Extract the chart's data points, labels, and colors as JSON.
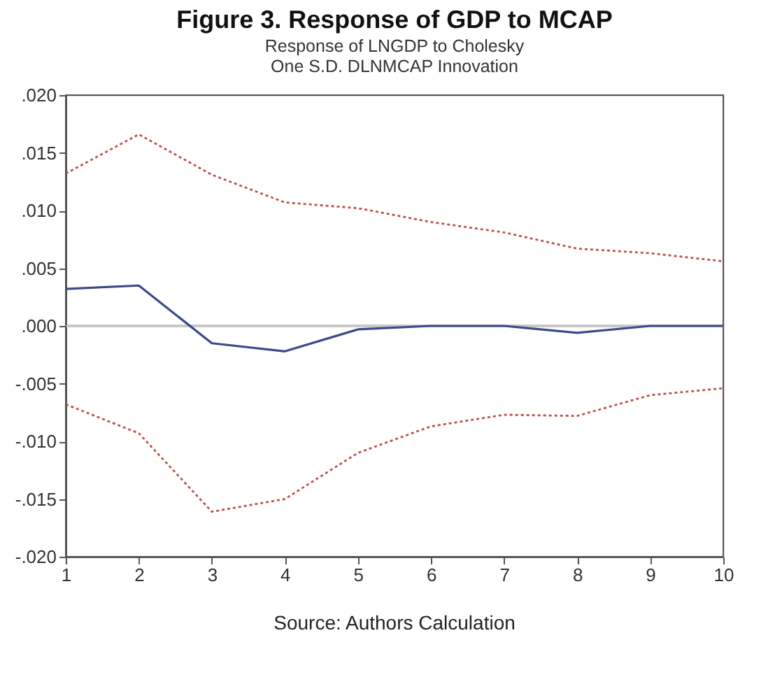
{
  "chart_data": {
    "type": "line",
    "title": "Figure 3. Response of GDP to MCAP",
    "subtitle": "Response of LNGDP to Cholesky\nOne S.D. DLNMCAP Innovation",
    "x": [
      1,
      2,
      3,
      4,
      5,
      6,
      7,
      8,
      9,
      10
    ],
    "series": [
      {
        "color": "#3b4a8a",
        "line_style": "solid",
        "values": [
          0.0032,
          0.0035,
          -0.0015,
          -0.0022,
          -0.0003,
          0.0,
          0.0,
          -0.0006,
          0.0,
          0.0
        ]
      },
      {
        "color": "#c0504d",
        "line_style": "dotted",
        "values": [
          0.0132,
          0.0166,
          0.0131,
          0.0107,
          0.0102,
          0.009,
          0.0081,
          0.0067,
          0.0063,
          0.0056
        ]
      },
      {
        "color": "#c0504d",
        "line_style": "dotted",
        "values": [
          -0.0068,
          -0.0093,
          -0.0161,
          -0.015,
          -0.011,
          -0.0087,
          -0.0077,
          -0.0078,
          -0.006,
          -0.0054
        ]
      }
    ],
    "xlim": [
      1,
      10
    ],
    "xticks": [
      1,
      2,
      3,
      4,
      5,
      6,
      7,
      8,
      9,
      10
    ],
    "ylim": [
      -0.02,
      0.02
    ],
    "yticks": [
      {
        "value": -0.02,
        "label": "-.020"
      },
      {
        "value": -0.015,
        "label": "-.015"
      },
      {
        "value": -0.01,
        "label": "-.010"
      },
      {
        "value": -0.005,
        "label": "-.005"
      },
      {
        "value": 0,
        "label": ".000"
      },
      {
        "value": 0.005,
        "label": ".005"
      },
      {
        "value": 0.01,
        "label": ".010"
      },
      {
        "value": 0.015,
        "label": ".015"
      },
      {
        "value": 0.02,
        "label": ".020"
      }
    ],
    "ref_lines": [
      {
        "axis": "y",
        "value": 0,
        "color": "#c8c8c8"
      }
    ],
    "grid": false,
    "marker": "none",
    "annotations": [
      "Source: Authors Calculation"
    ]
  }
}
